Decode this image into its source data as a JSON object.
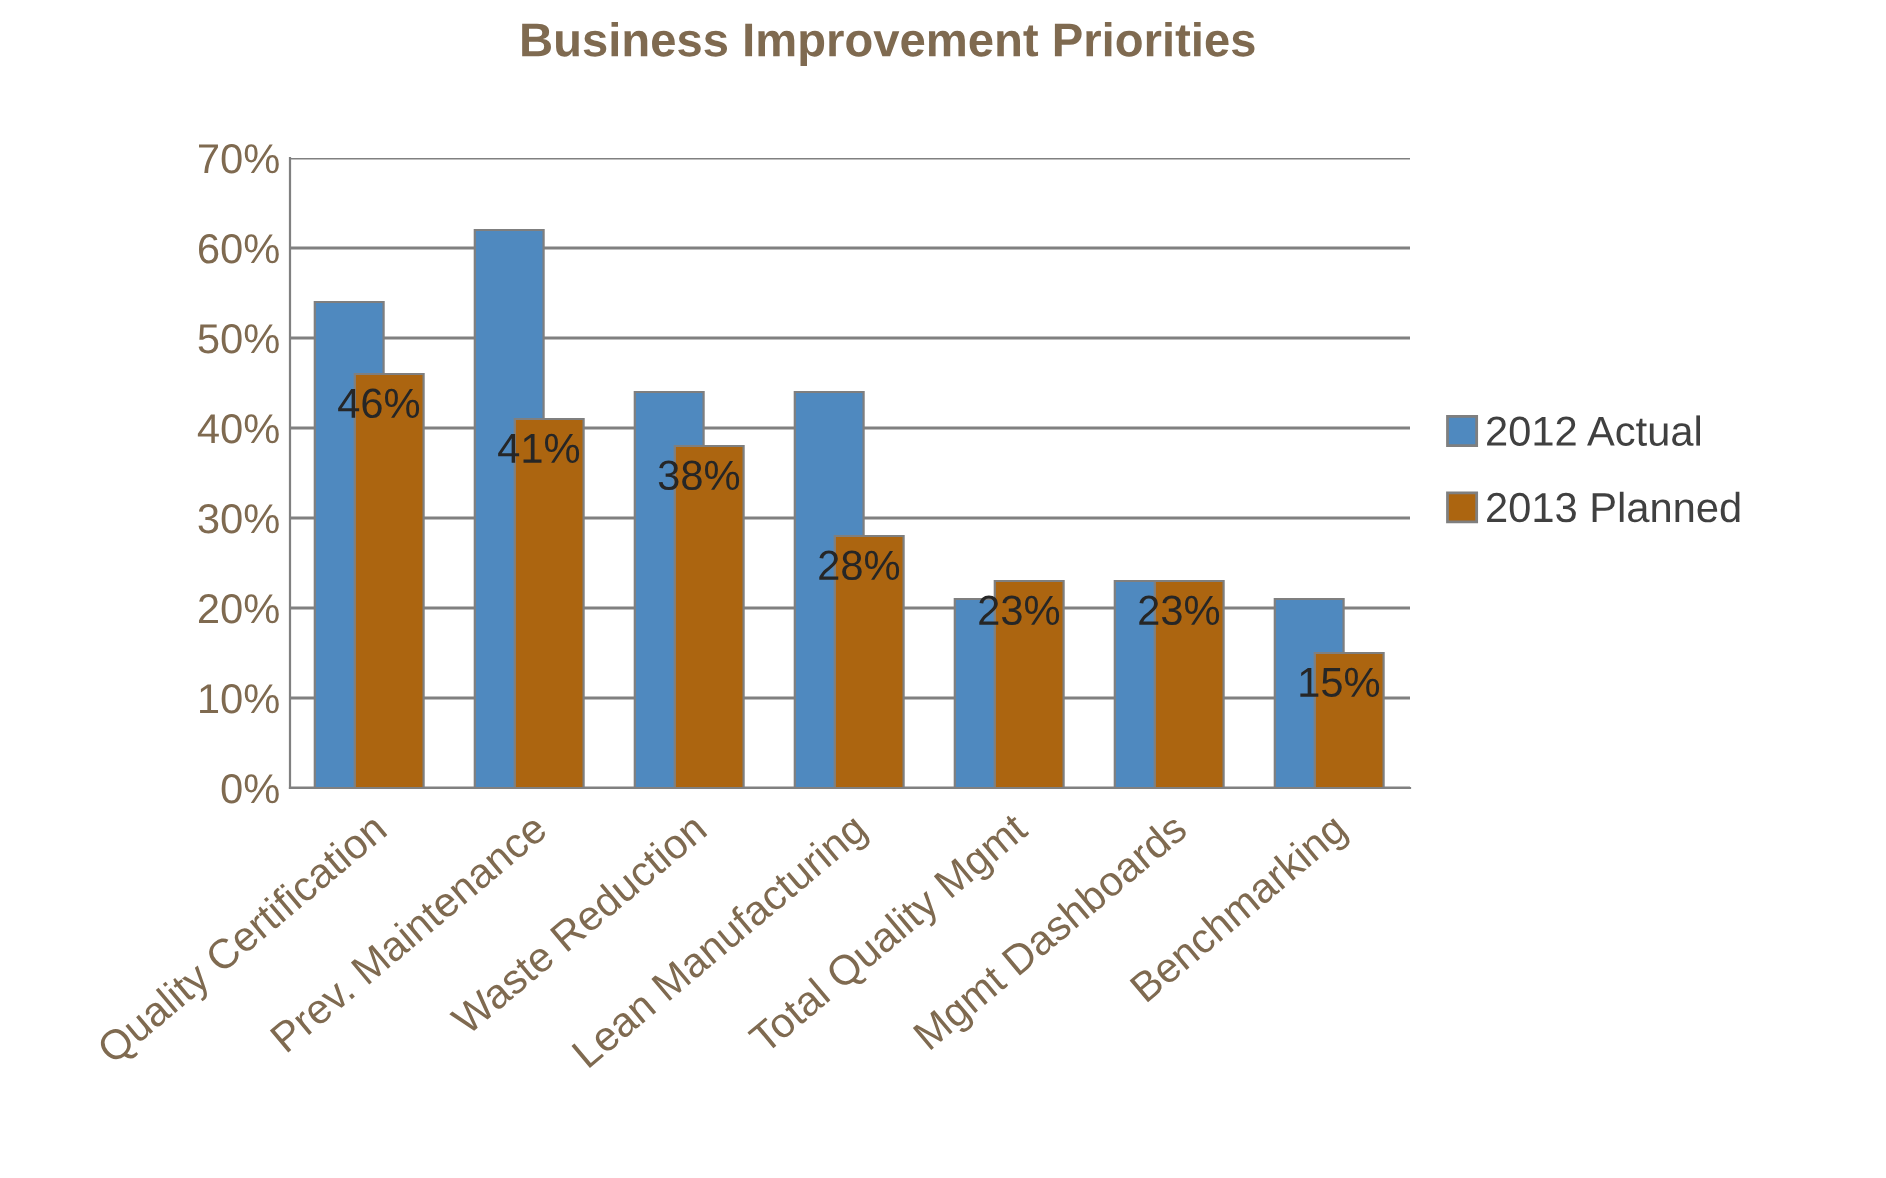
{
  "chart_data": {
    "type": "bar",
    "title": "Business Improvement Priorities",
    "categories": [
      "Quality Certification",
      "Prev. Maintenance",
      "Waste Reduction",
      "Lean Manufacturing",
      "Total Quality Mgmt",
      "Mgmt Dashboards",
      "Benchmarking"
    ],
    "series": [
      {
        "name": "2012 Actual",
        "color": "#4f89bf",
        "values": [
          54,
          62,
          44,
          44,
          21,
          23,
          21
        ]
      },
      {
        "name": "2013 Planned",
        "color": "#ac6510",
        "values": [
          46,
          41,
          38,
          28,
          23,
          23,
          15
        ],
        "value_labels": [
          "46%",
          "41%",
          "38%",
          "28%",
          "23%",
          "23%",
          "15%"
        ]
      }
    ],
    "ylim": [
      0,
      70
    ],
    "yticks": [
      {
        "value": 0,
        "label": "0%"
      },
      {
        "value": 10,
        "label": "10%"
      },
      {
        "value": 20,
        "label": "20%"
      },
      {
        "value": 30,
        "label": "30%"
      },
      {
        "value": 40,
        "label": "40%"
      },
      {
        "value": 50,
        "label": "50%"
      },
      {
        "value": 60,
        "label": "60%"
      },
      {
        "value": 70,
        "label": "70%"
      }
    ],
    "grid": "y",
    "legend": "right"
  }
}
